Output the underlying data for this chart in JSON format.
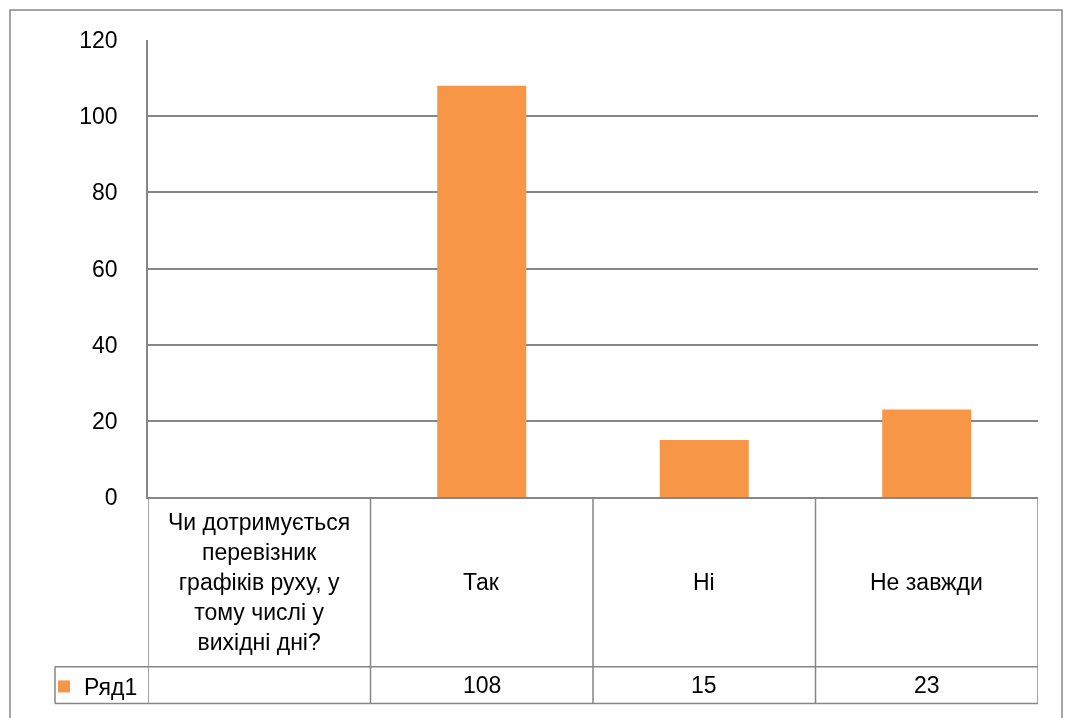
{
  "chart_data": {
    "type": "bar",
    "categories": [
      "Чи дотримується перевізник графіків руху, у тому числі у вихідні дні?",
      "Так",
      "Ні",
      "Не завжди"
    ],
    "series": [
      {
        "name": "Ряд1",
        "color": "#f79646",
        "values": [
          null,
          108,
          15,
          23
        ]
      }
    ],
    "ylim": [
      0,
      120
    ],
    "yticks": [
      0,
      20,
      40,
      60,
      80,
      100,
      120
    ],
    "grid": "y",
    "legend": "bottom left",
    "data_labels": true
  }
}
